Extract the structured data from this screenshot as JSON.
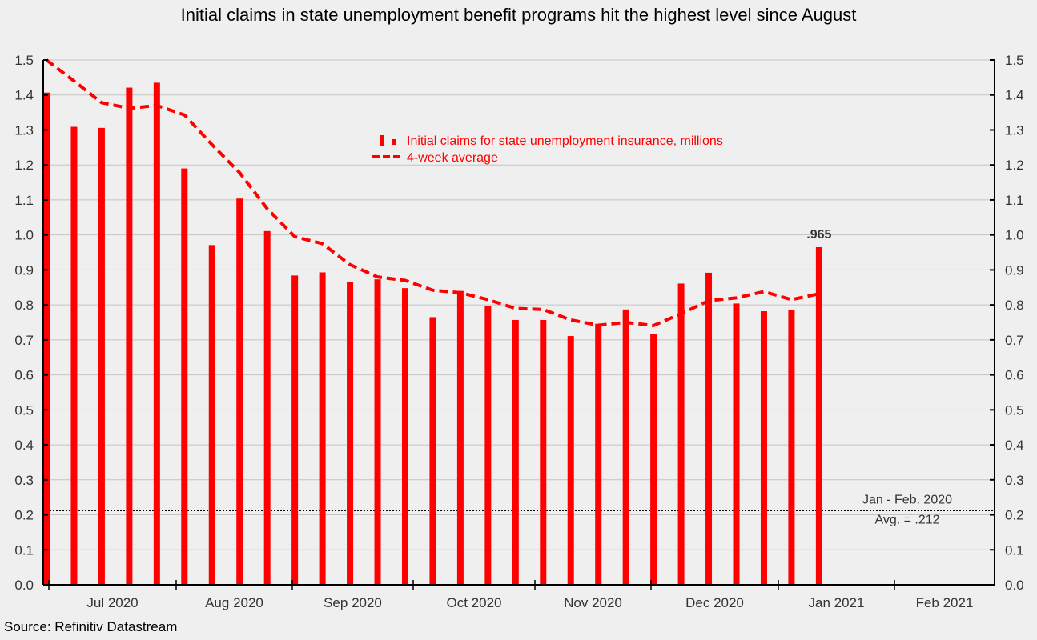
{
  "chart_data": {
    "type": "bar",
    "title": "Initial claims in state unemployment benefit programs hit the highest level since August",
    "source": "Source: Refinitiv Datastream",
    "xlabel": "",
    "ylabel": "",
    "ylim": [
      0,
      1.5
    ],
    "yticks": [
      "0.0",
      "0.1",
      "0.2",
      "0.3",
      "0.4",
      "0.5",
      "0.6",
      "0.7",
      "0.8",
      "0.9",
      "1.0",
      "1.1",
      "1.2",
      "1.3",
      "1.4",
      "1.5"
    ],
    "y_axis_both_sides": true,
    "grid": true,
    "month_labels": [
      "Jul 2020",
      "Aug 2020",
      "Sep 2020",
      "Oct 2020",
      "Nov 2020",
      "Dec 2020",
      "Jan 2021",
      "Feb 2021"
    ],
    "legend_position": "top-center",
    "series": [
      {
        "name": "Initial claims for state unemployment insurance,  millions",
        "kind": "bar",
        "color": "#ff0000",
        "values": [
          1.407,
          1.309,
          1.306,
          1.421,
          1.435,
          1.19,
          0.971,
          1.104,
          1.011,
          0.884,
          0.893,
          0.866,
          0.873,
          0.848,
          0.765,
          0.84,
          0.797,
          0.757,
          0.757,
          0.711,
          0.746,
          0.787,
          0.716,
          0.861,
          0.892,
          0.804,
          0.782,
          0.785,
          0.965
        ]
      },
      {
        "name": "4-week average",
        "kind": "line-dashed",
        "color": "#ff0000",
        "values": [
          1.5,
          1.44,
          1.378,
          1.362,
          1.37,
          1.343,
          1.258,
          1.178,
          1.075,
          0.995,
          0.975,
          0.915,
          0.88,
          0.87,
          0.842,
          0.835,
          0.815,
          0.79,
          0.787,
          0.757,
          0.742,
          0.75,
          0.741,
          0.775,
          0.812,
          0.82,
          0.838,
          0.815,
          0.832
        ]
      }
    ],
    "reference_line": {
      "value": 0.212,
      "label_line1": "Jan - Feb. 2020",
      "label_line2": "Avg. = .212",
      "style": "dotted",
      "color": "#000000"
    },
    "annotations": [
      {
        "text": ".965",
        "series": 0,
        "index": 28
      }
    ]
  }
}
